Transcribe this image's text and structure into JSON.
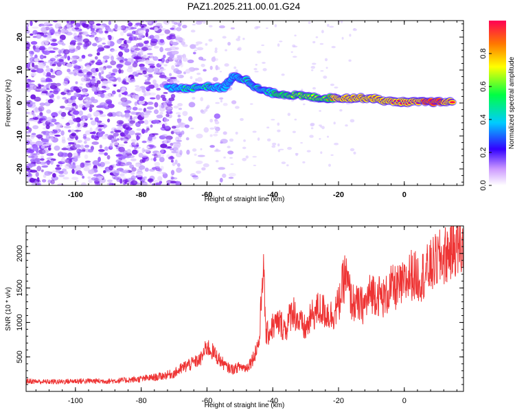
{
  "title": "PAZ1.2025.211.00.01.G24",
  "colors": {
    "snr_line": "#ee3333",
    "spectrogram_ridge": [
      "#2200cc",
      "#00ccee",
      "#33ff33",
      "#ffff00",
      "#ff3333"
    ],
    "noise_scatter": "#8844ee"
  },
  "chart_data": [
    {
      "type": "heatmap",
      "xlabel": "Height of straight line (km)",
      "ylabel": "Frequency (Hz)",
      "xlim": [
        -115,
        18
      ],
      "ylim": [
        -25,
        25
      ],
      "x_ticks": [
        "-100",
        "-80",
        "-60",
        "-40",
        "-20",
        "0"
      ],
      "y_ticks": [
        "-20",
        "-10",
        "0",
        "10",
        "20"
      ],
      "colorbar": {
        "label": "Normalized spectral amplitude",
        "range": [
          0,
          1
        ],
        "ticks": [
          "0.0",
          "0.2",
          "0.4",
          "0.6",
          "0.8"
        ],
        "stops": [
          "#ffffff",
          "#aa55ff",
          "#2200ff",
          "#00ccff",
          "#00ff66",
          "#ffff00",
          "#ff8800",
          "#ff0044"
        ]
      },
      "ridge": [
        {
          "x": -72,
          "y": 4.5,
          "amp": 0.3
        },
        {
          "x": -66,
          "y": 4.5,
          "amp": 0.4
        },
        {
          "x": -60,
          "y": 5.0,
          "amp": 0.4
        },
        {
          "x": -55,
          "y": 4.5,
          "amp": 0.35
        },
        {
          "x": -52,
          "y": 8.0,
          "amp": 0.35
        },
        {
          "x": -48,
          "y": 7.0,
          "amp": 0.4
        },
        {
          "x": -44,
          "y": 4.0,
          "amp": 0.45
        },
        {
          "x": -40,
          "y": 3.0,
          "amp": 0.5
        },
        {
          "x": -35,
          "y": 2.5,
          "amp": 0.55
        },
        {
          "x": -30,
          "y": 2.0,
          "amp": 0.6
        },
        {
          "x": -25,
          "y": 1.5,
          "amp": 0.7
        },
        {
          "x": -20,
          "y": 1.5,
          "amp": 0.75
        },
        {
          "x": -15,
          "y": 1.5,
          "amp": 0.8
        },
        {
          "x": -10,
          "y": 1.5,
          "amp": 0.8
        },
        {
          "x": -5,
          "y": 0.5,
          "amp": 0.85
        },
        {
          "x": 0,
          "y": 0.3,
          "amp": 0.9
        },
        {
          "x": 5,
          "y": 0.3,
          "amp": 0.95
        },
        {
          "x": 10,
          "y": 0.3,
          "amp": 1.0
        },
        {
          "x": 15,
          "y": 0.3,
          "amp": 0.9
        }
      ]
    },
    {
      "type": "line",
      "xlabel": "Height of straight line (km)",
      "ylabel": "SNR (10 * v/v)",
      "xlim": [
        -115,
        18
      ],
      "ylim": [
        0,
        2400
      ],
      "x_ticks": [
        "-100",
        "-80",
        "-60",
        "-40",
        "-20",
        "0"
      ],
      "y_ticks": [
        "500",
        "1000",
        "1500",
        "2000"
      ],
      "series": [
        {
          "x": [
            -115,
            -110,
            -105,
            -100,
            -95,
            -90,
            -85,
            -80,
            -75,
            -70,
            -66,
            -62,
            -60,
            -58,
            -56,
            -54,
            -52,
            -50,
            -48,
            -46,
            -44,
            -43,
            -42,
            -40,
            -38,
            -36,
            -34,
            -32,
            -30,
            -28,
            -26,
            -24,
            -22,
            -20,
            -18,
            -16,
            -14,
            -12,
            -10,
            -8,
            -6,
            -4,
            -2,
            0,
            2,
            4,
            6,
            8,
            10,
            12,
            14,
            16,
            18
          ],
          "y": [
            150,
            140,
            140,
            150,
            150,
            150,
            160,
            180,
            210,
            260,
            380,
            460,
            650,
            560,
            450,
            350,
            320,
            360,
            340,
            480,
            750,
            1900,
            800,
            950,
            1000,
            900,
            1200,
            1000,
            900,
            1100,
            1200,
            1150,
            1100,
            1250,
            1700,
            1300,
            1250,
            1250,
            1450,
            1400,
            1350,
            1500,
            1500,
            1550,
            1700,
            1650,
            1700,
            1800,
            1900,
            1950,
            2050,
            2150,
            2050
          ]
        }
      ]
    }
  ]
}
